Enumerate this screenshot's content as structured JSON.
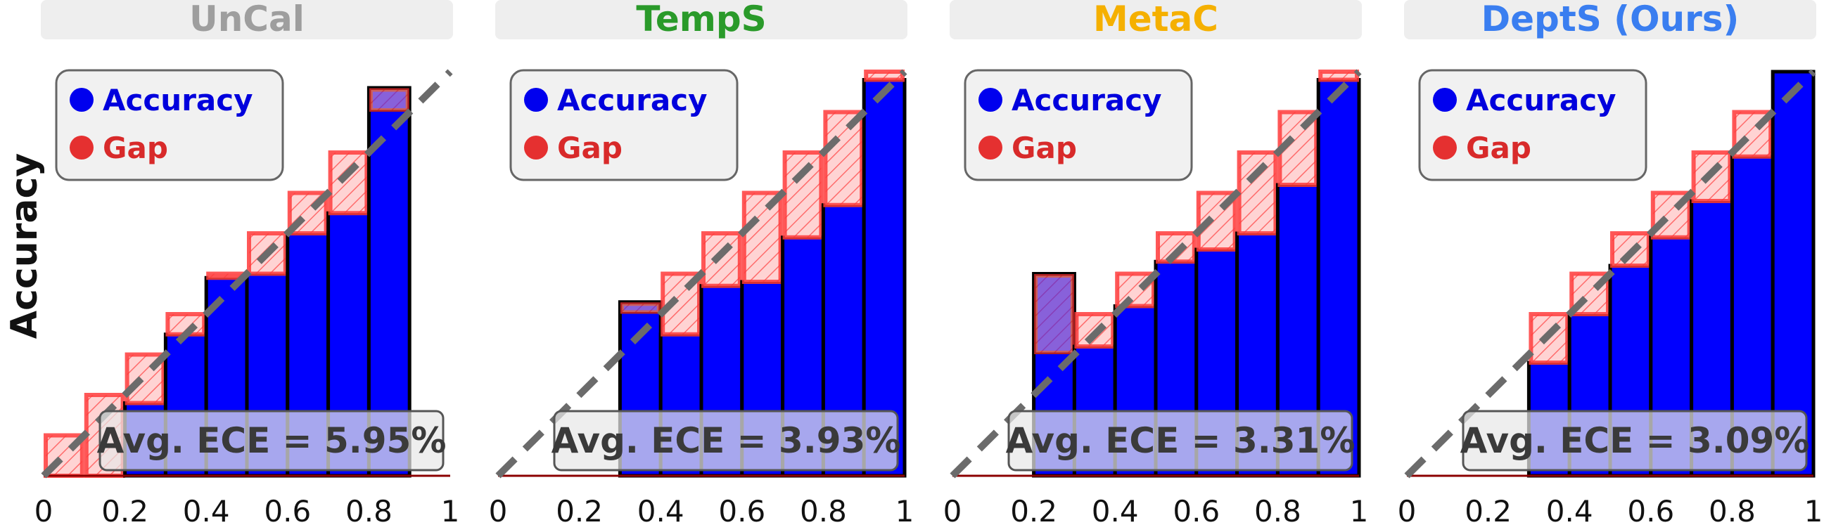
{
  "ylabel": "Accuracy",
  "legend": {
    "accuracy_label": "Accuracy",
    "gap_label": "Gap"
  },
  "colors": {
    "accuracy": "#0000ff",
    "gap": "#ff3b3b",
    "legend_dot_accuracy": "#0000ee",
    "legend_dot_gap": "#e53030"
  },
  "chart_data": [
    {
      "type": "bar",
      "title": "UnCal",
      "title_color": "#9e9e9e",
      "bins": [
        0.1,
        0.2,
        0.3,
        0.4,
        0.5,
        0.6,
        0.7,
        0.8,
        0.9,
        1.0
      ],
      "accuracy": [
        0.0,
        0.0,
        0.18,
        0.35,
        0.49,
        0.5,
        0.6,
        0.65,
        0.96,
        null
      ],
      "ticks": [
        "0",
        "0.2",
        "0.4",
        "0.6",
        "0.8",
        "1"
      ],
      "xlim": [
        0,
        1
      ],
      "ylim": [
        0,
        1
      ],
      "annotation": "Avg. ECE = 5.95%"
    },
    {
      "type": "bar",
      "title": "TempS",
      "title_color": "#2a9a2a",
      "bins": [
        0.1,
        0.2,
        0.3,
        0.4,
        0.5,
        0.6,
        0.7,
        0.8,
        0.9,
        1.0
      ],
      "accuracy": [
        0.0,
        0.0,
        0.0,
        0.43,
        0.35,
        0.47,
        0.48,
        0.59,
        0.67,
        0.98
      ],
      "ticks": [
        "0",
        "0.2",
        "0.4",
        "0.6",
        "0.8",
        "1"
      ],
      "xlim": [
        0,
        1
      ],
      "ylim": [
        0,
        1
      ],
      "annotation": "Avg. ECE = 3.93%"
    },
    {
      "type": "bar",
      "title": "MetaC",
      "title_color": "#f5b000",
      "bins": [
        0.1,
        0.2,
        0.3,
        0.4,
        0.5,
        0.6,
        0.7,
        0.8,
        0.9,
        1.0
      ],
      "accuracy": [
        0.0,
        0.0,
        0.5,
        0.32,
        0.42,
        0.53,
        0.56,
        0.6,
        0.72,
        0.98
      ],
      "ticks": [
        "0",
        "0.2",
        "0.4",
        "0.6",
        "0.8",
        "1"
      ],
      "xlim": [
        0,
        1
      ],
      "ylim": [
        0,
        1
      ],
      "annotation": "Avg. ECE = 3.31%"
    },
    {
      "type": "bar",
      "title": "DeptS (Ours)",
      "title_color": "#3a7ef0",
      "bins": [
        0.1,
        0.2,
        0.3,
        0.4,
        0.5,
        0.6,
        0.7,
        0.8,
        0.9,
        1.0
      ],
      "accuracy": [
        0.0,
        0.0,
        0.0,
        0.28,
        0.4,
        0.52,
        0.59,
        0.68,
        0.79,
        1.0
      ],
      "ticks": [
        "0",
        "0.2",
        "0.4",
        "0.6",
        "0.8",
        "1"
      ],
      "xlim": [
        0,
        1
      ],
      "ylim": [
        0,
        1
      ],
      "annotation": "Avg. ECE = 3.09%"
    }
  ]
}
